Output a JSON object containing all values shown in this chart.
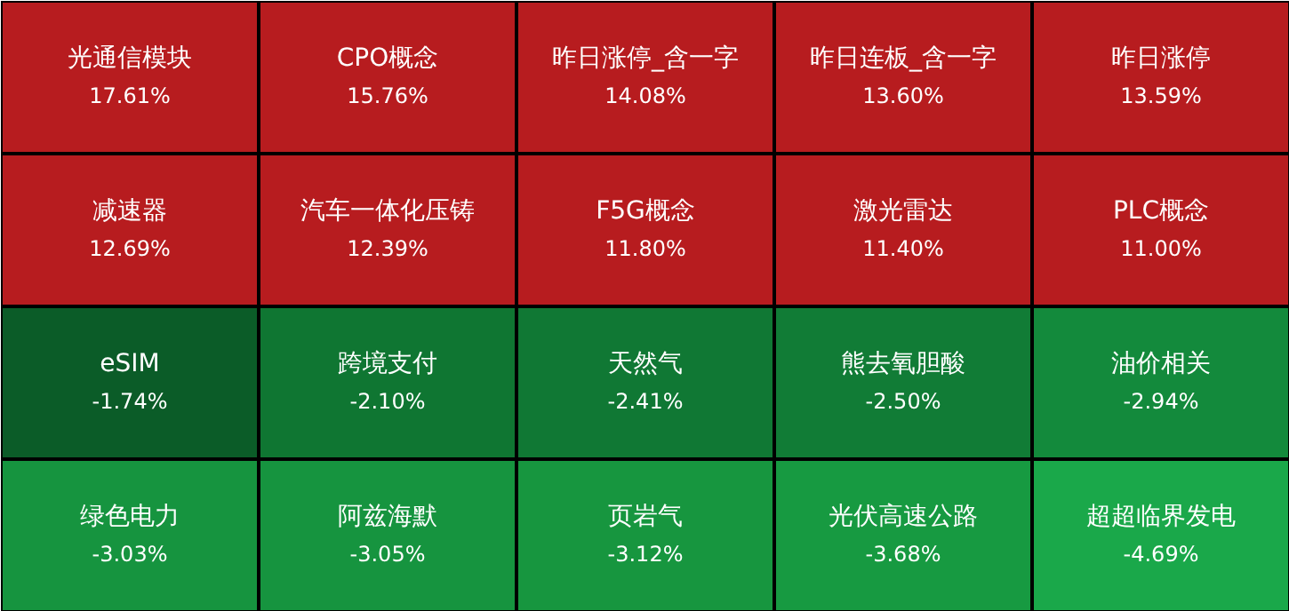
{
  "chart_data": {
    "type": "other",
    "categories": [
      "光通信模块",
      "CPO概念",
      "昨日涨停_含一字",
      "昨日连板_含一字",
      "昨日涨停",
      "减速器",
      "汽车一体化压铸",
      "F5G概念",
      "激光雷达",
      "PLC概念",
      "eSIM",
      "跨境支付",
      "天然气",
      "熊去氧胆酸",
      "油价相关",
      "绿色电力",
      "阿兹海默",
      "页岩气",
      "光伏高速公路",
      "超超临界发电"
    ],
    "values": [
      17.61,
      15.76,
      14.08,
      13.6,
      13.59,
      12.69,
      12.39,
      11.8,
      11.4,
      11.0,
      -1.74,
      -2.1,
      -2.41,
      -2.5,
      -2.94,
      -3.03,
      -3.05,
      -3.12,
      -3.68,
      -4.69
    ],
    "colors": [
      "#b71c1f",
      "#b71c1f",
      "#b71c1f",
      "#b71c1f",
      "#b71c1f",
      "#b71c1f",
      "#b71c1f",
      "#b71c1f",
      "#b71c1f",
      "#b71c1f",
      "#0b5c28",
      "#0f7632",
      "#107834",
      "#117c36",
      "#138a3c",
      "#16943f",
      "#16943f",
      "#17963f",
      "#179a41",
      "#1aa84a"
    ],
    "value_labels": [
      "17.61%",
      "15.76%",
      "14.08%",
      "13.60%",
      "13.59%",
      "12.69%",
      "12.39%",
      "11.80%",
      "11.40%",
      "11.00%",
      "-1.74%",
      "-2.10%",
      "-2.41%",
      "-2.50%",
      "-2.94%",
      "-3.03%",
      "-3.05%",
      "-3.12%",
      "-3.68%",
      "-4.69%"
    ]
  }
}
